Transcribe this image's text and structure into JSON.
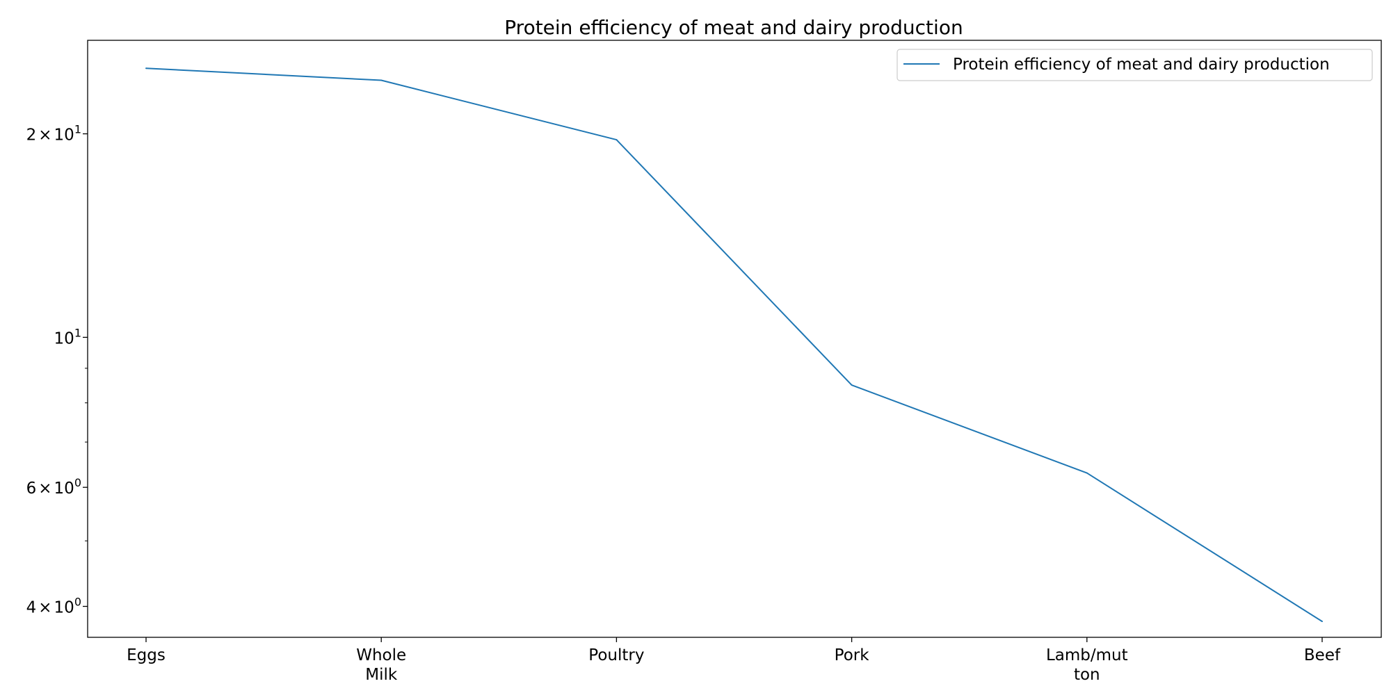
{
  "chart_data": {
    "type": "line",
    "title": "Protein efficiency of meat and dairy production",
    "xlabel": "",
    "ylabel": "",
    "categories": [
      [
        "Eggs"
      ],
      [
        "Whole",
        "Milk"
      ],
      [
        "Poultry"
      ],
      [
        "Pork"
      ],
      [
        "Lamb/mut",
        "ton"
      ],
      [
        "Beef"
      ]
    ],
    "series": [
      {
        "name": "Protein efficiency of meat and dairy production",
        "values": [
          25.0,
          24.0,
          19.6,
          8.5,
          6.3,
          3.8
        ],
        "color": "#1f77b4"
      }
    ],
    "yscale": "log",
    "ylim": [
      3.6,
      27.5
    ],
    "yticks": [
      {
        "value": 4,
        "mantissa": "4",
        "exponent": "0"
      },
      {
        "value": 6,
        "mantissa": "6",
        "exponent": "0"
      },
      {
        "value": 10,
        "mantissa": "",
        "exponent": "1"
      },
      {
        "value": 20,
        "mantissa": "2",
        "exponent": "1"
      }
    ],
    "minor_yticks": [
      5,
      7,
      8,
      9
    ],
    "grid": false,
    "legend_position": "top-right"
  }
}
